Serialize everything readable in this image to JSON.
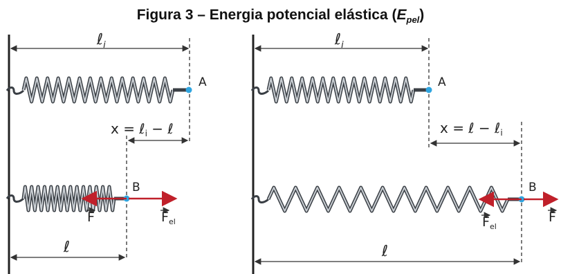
{
  "title": {
    "prefix": "Figura 3 – Energia potencial elástica (",
    "symbol": "E",
    "subscript": "pel",
    "suffix": ")"
  },
  "left_panel": {
    "length_initial": "ℓ",
    "length_initial_sub": "i",
    "point_a": "A",
    "deformation": "x = ℓ",
    "deformation_sub": "i",
    "deformation_end": " − ℓ",
    "point_b": "B",
    "force": "F",
    "force_elastic": "F",
    "force_elastic_sub": "el",
    "length_final": "ℓ"
  },
  "right_panel": {
    "length_initial": "ℓ",
    "length_initial_sub": "i",
    "point_a": "A",
    "deformation": "x = ℓ − ℓ",
    "deformation_sub": "i",
    "point_b": "B",
    "force": "F",
    "force_elastic": "F",
    "force_elastic_sub": "el",
    "length_final": "ℓ"
  },
  "colors": {
    "spring": "#3a3f45",
    "spring_highlight": "#c9ced3",
    "force_arrow": "#c0202a",
    "point": "#2fa5e0",
    "wall": "#222222",
    "dimension": "#333333"
  }
}
